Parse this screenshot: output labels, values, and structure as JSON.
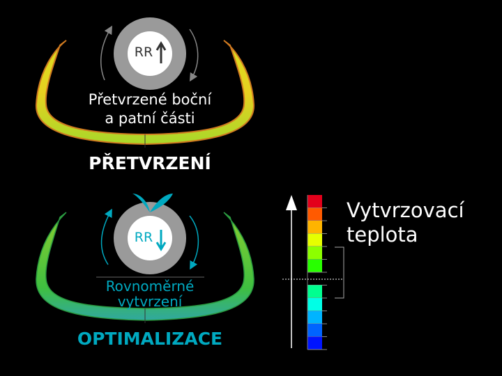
{
  "top": {
    "wheel_label": "RR",
    "caption_line1": "Přetvrzené boční",
    "caption_line2": "a patní části",
    "title": "PŘETVRZENÍ",
    "arrow_direction": "up"
  },
  "bottom": {
    "wheel_label": "RR",
    "caption_line1": "Rovnoměrné",
    "caption_line2": "vytvrzení",
    "title": "OPTIMALIZACE",
    "arrow_direction": "down",
    "accent": "#00a9c0"
  },
  "scale": {
    "label_line1": "Vytvrzovací",
    "label_line2": "teplota",
    "colors": [
      "#e3001b",
      "#ff5a00",
      "#ffb400",
      "#e6ff00",
      "#8cff00",
      "#28ff00",
      null,
      "#00ff90",
      "#00ffe6",
      "#00b4ff",
      "#0064ff",
      "#0014ff"
    ]
  }
}
